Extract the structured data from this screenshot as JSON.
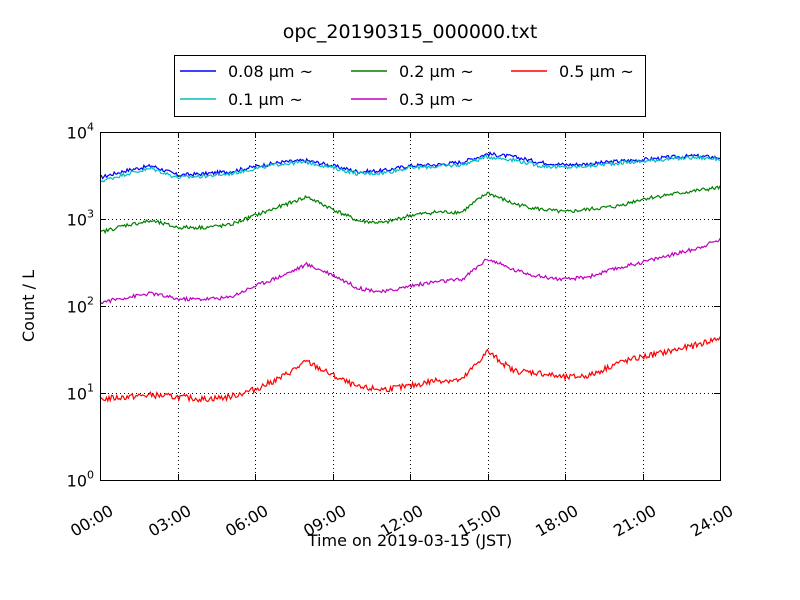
{
  "chart_data": {
    "type": "line",
    "title": "opc_20190315_000000.txt",
    "xlabel": "Time on 2019-03-15 (JST)",
    "ylabel": "Count / L",
    "yscale": "log",
    "xlim": [
      0,
      24
    ],
    "ylim": [
      1,
      10000
    ],
    "grid": true,
    "legend_position": "top-center-outside",
    "x_ticks": [
      0,
      3,
      6,
      9,
      12,
      15,
      18,
      21,
      24
    ],
    "x_tick_labels": [
      "00:00",
      "03:00",
      "06:00",
      "09:00",
      "12:00",
      "15:00",
      "18:00",
      "21:00",
      "24:00"
    ],
    "y_ticks": [
      1,
      10,
      100,
      1000,
      10000
    ],
    "y_tick_labels": [
      {
        "base": "10",
        "exp": "0"
      },
      {
        "base": "10",
        "exp": "1"
      },
      {
        "base": "10",
        "exp": "2"
      },
      {
        "base": "10",
        "exp": "3"
      },
      {
        "base": "10",
        "exp": "4"
      }
    ],
    "x": [
      0,
      1,
      2,
      3,
      4,
      5,
      6,
      7,
      8,
      9,
      10,
      11,
      12,
      13,
      14,
      15,
      16,
      17,
      18,
      19,
      20,
      21,
      22,
      23,
      24
    ],
    "series": [
      {
        "name": "0.08 μm ~",
        "color": "#0000ff",
        "values": [
          3000,
          3600,
          4100,
          3200,
          3300,
          3500,
          4000,
          4500,
          4700,
          4100,
          3500,
          3600,
          4100,
          4200,
          4500,
          5600,
          5200,
          4500,
          4200,
          4300,
          4600,
          4800,
          5100,
          5300,
          5100
        ]
      },
      {
        "name": "0.1 μm ~",
        "color": "#00bfbf",
        "values": [
          2700,
          3300,
          3800,
          3000,
          3100,
          3300,
          3800,
          4300,
          4500,
          3900,
          3300,
          3400,
          3900,
          4000,
          4200,
          5200,
          4800,
          4100,
          3900,
          4100,
          4400,
          4600,
          4900,
          5100,
          4900
        ]
      },
      {
        "name": "0.2 μm ~",
        "color": "#008000",
        "values": [
          700,
          850,
          950,
          800,
          800,
          850,
          1100,
          1400,
          1800,
          1300,
          950,
          900,
          1100,
          1200,
          1200,
          2000,
          1500,
          1300,
          1200,
          1300,
          1400,
          1700,
          1900,
          2100,
          2300
        ]
      },
      {
        "name": "0.3 μm ~",
        "color": "#bf00bf",
        "values": [
          110,
          125,
          140,
          120,
          120,
          125,
          170,
          220,
          300,
          230,
          160,
          145,
          170,
          190,
          200,
          350,
          260,
          220,
          200,
          220,
          270,
          320,
          380,
          450,
          580
        ]
      },
      {
        "name": "0.5 μm ~",
        "color": "#ff0000",
        "values": [
          8.5,
          9,
          9.5,
          9,
          8.5,
          9,
          11,
          15,
          23,
          16,
          11.5,
          11,
          12,
          14,
          14,
          30,
          18,
          17,
          15,
          16,
          22,
          26,
          30,
          35,
          43
        ]
      }
    ]
  }
}
